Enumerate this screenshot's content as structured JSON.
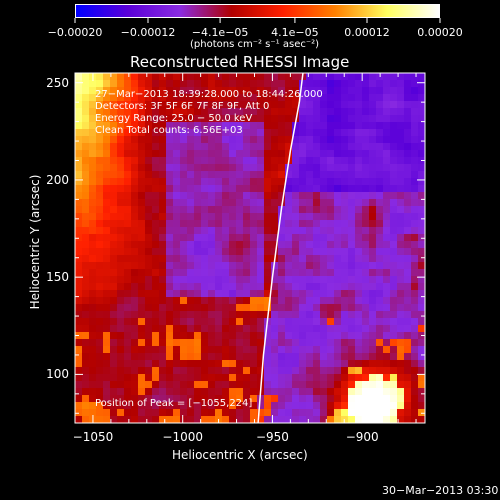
{
  "chart_data": {
    "type": "heatmap",
    "title": "Reconstructed RHESSI Image",
    "xlabel": "Heliocentric X (arcsec)",
    "ylabel": "Heliocentric Y (arcsec)",
    "xlim": [
      -1060,
      -865
    ],
    "ylim": [
      75,
      255
    ],
    "xticks": [
      -1050,
      -1000,
      -950,
      -900
    ],
    "xtick_labels": [
      "−1050",
      "−1000",
      "−950",
      "−900"
    ],
    "yticks": [
      100,
      150,
      200,
      250
    ],
    "ytick_labels": [
      "100",
      "150",
      "200",
      "250"
    ],
    "colorbar": {
      "range": [
        -0.0002,
        0.0002
      ],
      "ticks": [
        -0.0002,
        -0.00012,
        -4.1e-05,
        4.1e-05,
        0.00012,
        0.0002
      ],
      "tick_labels": [
        "−0.00020",
        "−0.00012",
        "−4.1e−05",
        "4.1e−05",
        "0.00012",
        "0.00020"
      ],
      "unit_label": "(photons cm⁻² s⁻¹ asec⁻²)",
      "colormap": [
        "#0000ff",
        "#5a00d8",
        "#8a2be2",
        "#b00000",
        "#ff2000",
        "#ff8000",
        "#ffff60",
        "#ffffff"
      ]
    },
    "annotations": [
      "27−Mar−2013 18:39:28.000 to 18:44:26.000",
      "Detectors: 3F 5F 6F 7F 8F 9F, Att 0",
      "Energy Range: 25.0 − 50.0 keV",
      "Clean    Total counts: 6.56E+03"
    ],
    "peak_label": "Position of Peak = [−1055,224]",
    "limb_curve": [
      [
        -958,
        75
      ],
      [
        -955,
        110
      ],
      [
        -950,
        150
      ],
      [
        -945,
        185
      ],
      [
        -940,
        215
      ],
      [
        -935,
        240
      ],
      [
        -933,
        255
      ]
    ],
    "regions": [
      {
        "name": "left bright region",
        "x_range": [
          -1060,
          -1015
        ],
        "y_range": [
          130,
          255
        ],
        "level": "high"
      },
      {
        "name": "lower right hot spot",
        "x_center": -893,
        "y_center": 86,
        "level": "high"
      },
      {
        "name": "upper right region",
        "x_range": [
          -935,
          -865
        ],
        "y_range": [
          200,
          255
        ],
        "level": "low"
      }
    ]
  },
  "footer_date": "30−Mar−2013 03:30"
}
